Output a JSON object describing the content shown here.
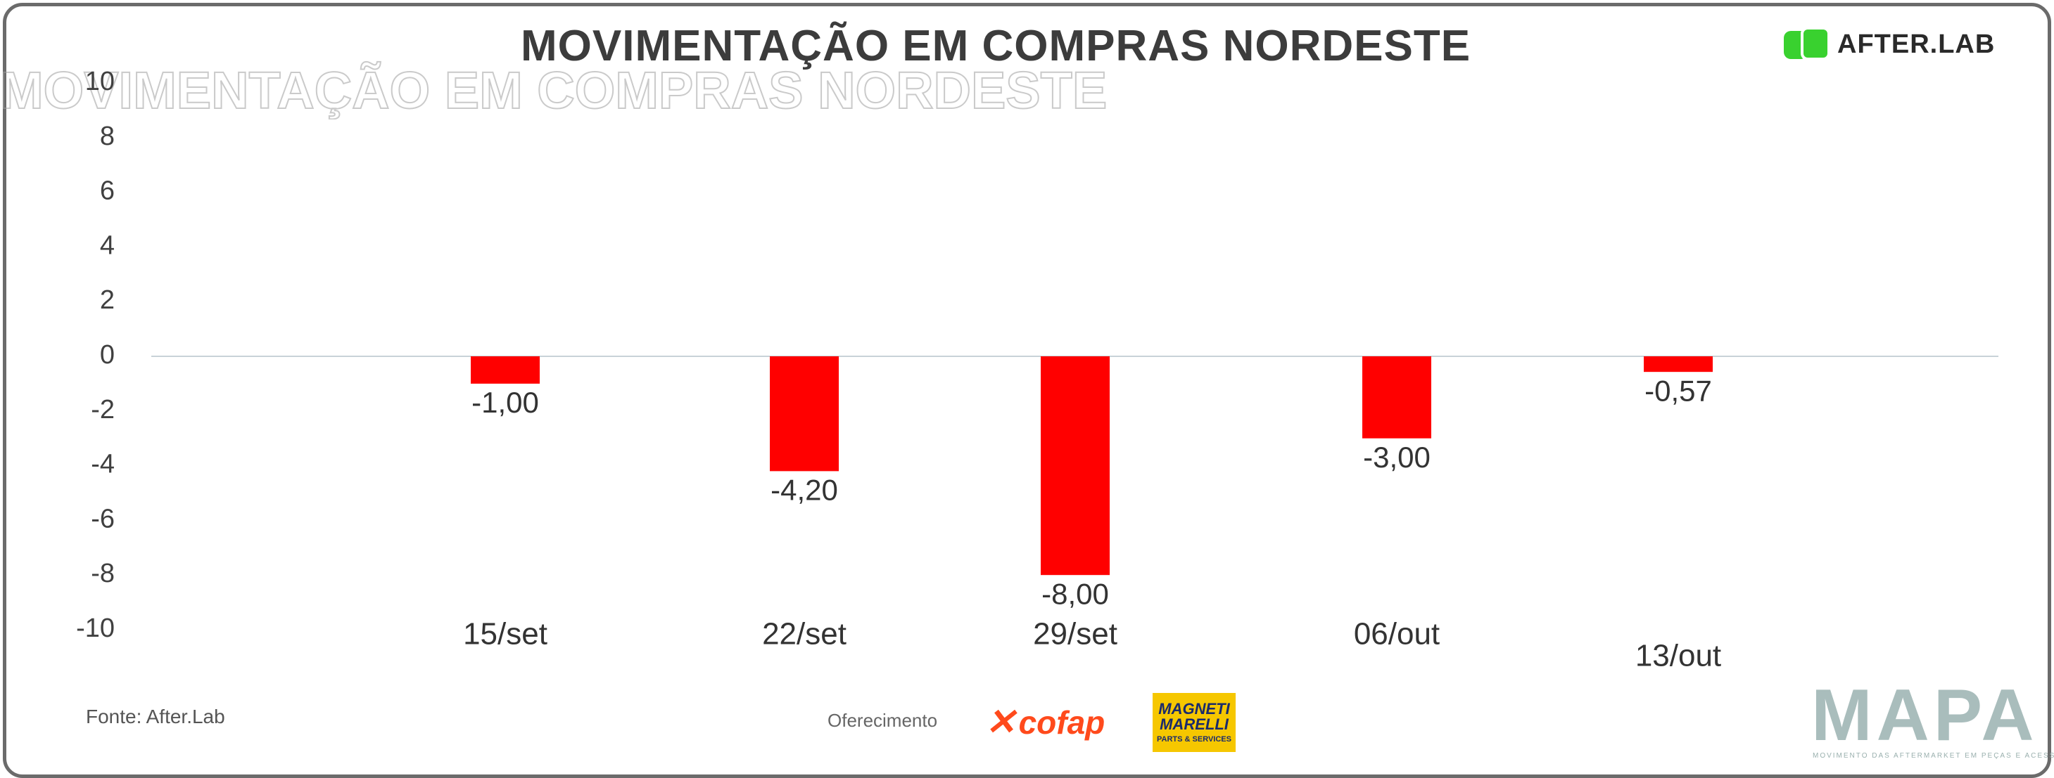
{
  "header": {
    "title": "MOVIMENTAÇÃO EM COMPRAS NORDESTE",
    "brand": "AFTER.LAB"
  },
  "footer": {
    "source": "Fonte: After.Lab",
    "sponsor_label": "Oferecimento",
    "sponsor_1": "cofap",
    "sponsor_2_line1": "MAGNETI",
    "sponsor_2_line2": "MARELLI",
    "sponsor_2_line3": "PARTS & SERVICES",
    "brand_mark": "MAPA",
    "brand_tagline": "MOVIMENTO DAS AFTERMARKET EM PEÇAS E ACESSÓRIOS"
  },
  "colors": {
    "bar": "#ff0000",
    "axis_line": "#c8d2d8",
    "accent_green": "#39d12f"
  },
  "chart_data": {
    "type": "bar",
    "title": "MOVIMENTAÇÃO EM COMPRAS NORDESTE",
    "xlabel": "",
    "ylabel": "",
    "categories": [
      "15/set",
      "22/set",
      "29/set",
      "06/out",
      "13/out"
    ],
    "values": [
      -1.0,
      -4.2,
      -8.0,
      -3.0,
      -0.57
    ],
    "data_labels": [
      "-1,00",
      "-4,20",
      "-8,00",
      "-3,00",
      "-0,57"
    ],
    "ylim": [
      -10,
      10
    ],
    "yticks": [
      10,
      8,
      6,
      4,
      2,
      0,
      -2,
      -4,
      -6,
      -8,
      -10
    ],
    "grid": false,
    "legend": "none"
  }
}
